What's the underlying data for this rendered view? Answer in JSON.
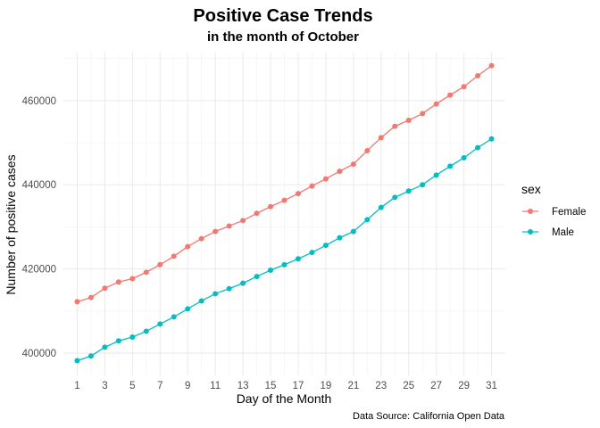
{
  "chart_data": {
    "type": "line",
    "title": "Positive Case Trends",
    "subtitle": "in the month of October",
    "xlabel": "Day of the Month",
    "ylabel": "Number of positive cases",
    "caption": "Data Source: California Open Data",
    "x": [
      1,
      2,
      3,
      4,
      5,
      6,
      7,
      8,
      9,
      10,
      11,
      12,
      13,
      14,
      15,
      16,
      17,
      18,
      19,
      20,
      21,
      22,
      23,
      24,
      25,
      26,
      27,
      28,
      29,
      30,
      31
    ],
    "xticks": [
      1,
      3,
      5,
      7,
      9,
      11,
      13,
      15,
      17,
      19,
      21,
      23,
      25,
      27,
      29,
      31
    ],
    "yticks": [
      400000,
      420000,
      440000,
      460000
    ],
    "xlim": [
      0,
      32
    ],
    "ylim": [
      394700,
      471400
    ],
    "grid": true,
    "legend": {
      "title": "sex",
      "position": "right"
    },
    "series": [
      {
        "name": "Female",
        "color": "#F8766D",
        "values": [
          412200,
          413200,
          415400,
          416900,
          417700,
          419200,
          421000,
          423000,
          425300,
          427200,
          428900,
          430200,
          431500,
          433200,
          434800,
          436300,
          437900,
          439700,
          441400,
          443200,
          444900,
          448100,
          451200,
          453900,
          455300,
          456900,
          459200,
          461300,
          463300,
          465900,
          468300
        ]
      },
      {
        "name": "Male",
        "color": "#00BFC4",
        "values": [
          398200,
          399300,
          401400,
          402900,
          403800,
          405200,
          406900,
          408600,
          410500,
          412400,
          414100,
          415300,
          416600,
          418200,
          419700,
          421000,
          422400,
          423900,
          425600,
          427400,
          428900,
          431700,
          434600,
          437000,
          438500,
          440000,
          442300,
          444400,
          446400,
          448800,
          450900
        ]
      }
    ]
  }
}
